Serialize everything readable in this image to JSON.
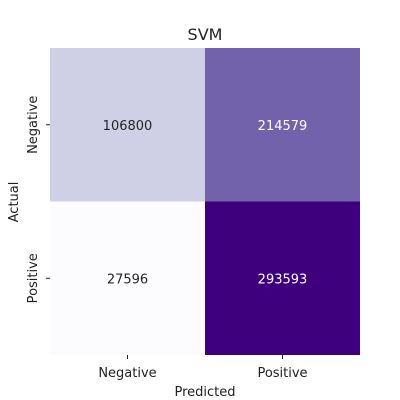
{
  "chart_data": {
    "type": "heatmap",
    "title": "SVM",
    "xlabel": "Predicted",
    "ylabel": "Actual",
    "x_categories": [
      "Negative",
      "Positive"
    ],
    "y_categories": [
      "Negative",
      "Positive"
    ],
    "values": [
      [
        106800,
        214579
      ],
      [
        27596,
        293593
      ]
    ],
    "colormap": "Purples",
    "colorbar": false,
    "colors": {
      "low": "#fcfbfd",
      "high": "#3f007d",
      "text_dark": "#262626",
      "text_light": "#ffffff"
    }
  }
}
